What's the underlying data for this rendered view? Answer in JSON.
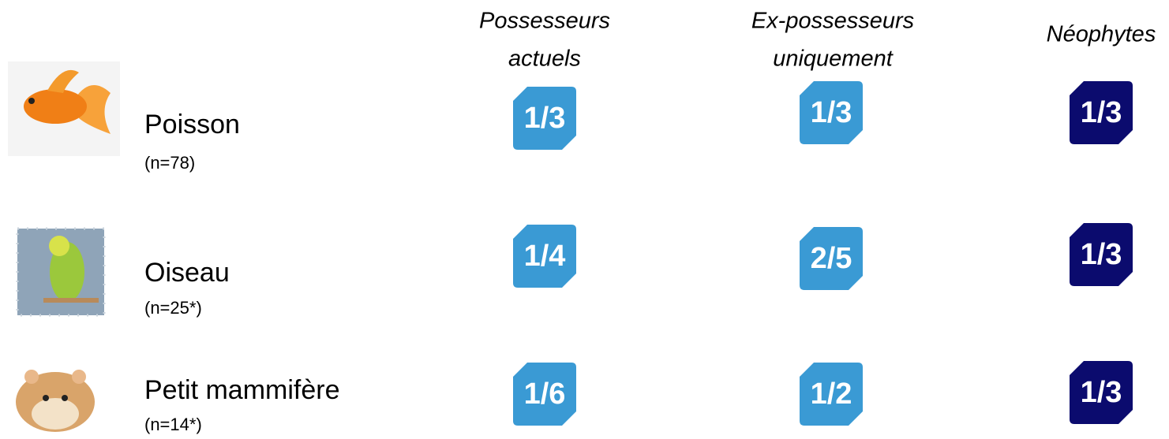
{
  "columns": [
    {
      "lines": [
        "Possesseurs",
        "actuels"
      ],
      "color": "#3a9ad4"
    },
    {
      "lines": [
        "Ex-possesseurs",
        "uniquement"
      ],
      "color": "#3a9ad4"
    },
    {
      "lines": [
        "Néophytes"
      ],
      "color": "#0b0b6e"
    }
  ],
  "rows": [
    {
      "label": "Poisson",
      "n": "(n=78)",
      "values": [
        "1/3",
        "1/3",
        "1/3"
      ]
    },
    {
      "label": "Oiseau",
      "n": "(n=25*)",
      "values": [
        "1/4",
        "2/5",
        "1/3"
      ]
    },
    {
      "label": "Petit mammifère",
      "n": "(n=14*)",
      "values": [
        "1/6",
        "1/2",
        "1/3"
      ]
    }
  ]
}
